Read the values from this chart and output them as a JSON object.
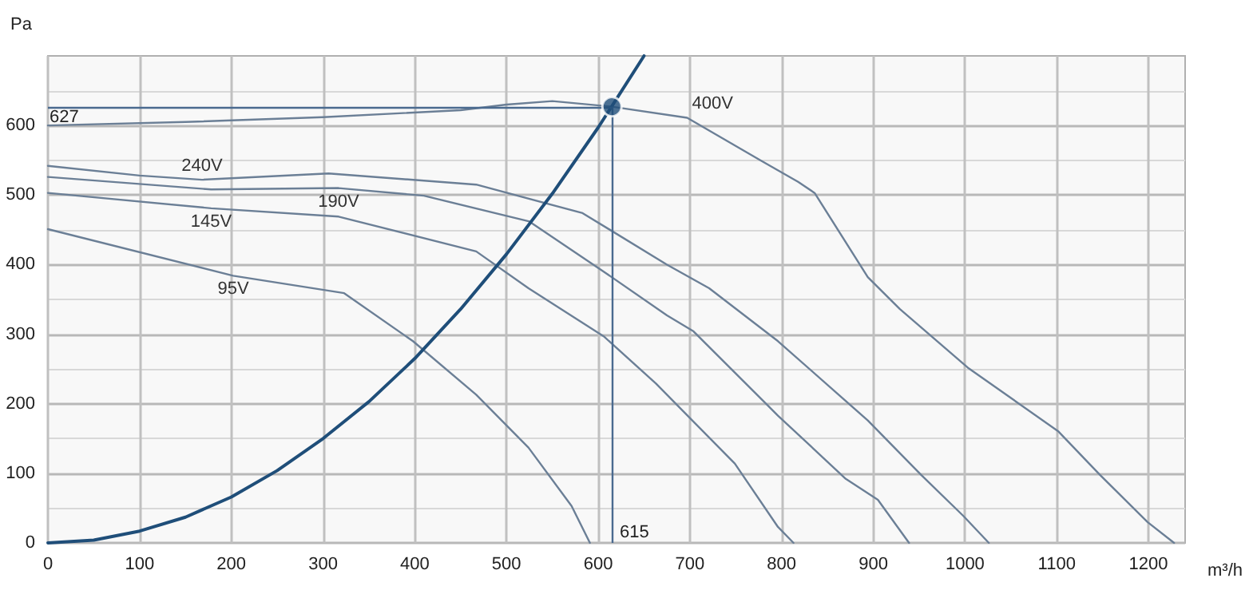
{
  "chart_data": {
    "type": "line",
    "ylabel": "Pa",
    "xlabel": "m³/h",
    "xlim": [
      0,
      1240
    ],
    "xticks": [
      0,
      100,
      200,
      300,
      400,
      500,
      600,
      700,
      800,
      900,
      1000,
      1100,
      1200
    ],
    "ylim": [
      0,
      700
    ],
    "yticks": [
      0,
      100,
      200,
      300,
      400,
      500,
      600
    ],
    "grid": true,
    "legend": false,
    "marker": "none",
    "line_style": "solid",
    "series": [
      {
        "name": "400V",
        "color": "#6b7f96",
        "x": [
          0,
          150,
          300,
          450,
          500,
          550,
          615,
          697,
          778,
          818,
          836,
          894,
          929,
          1003,
          1102,
          1147,
          1199,
          1228
        ],
        "values": [
          600,
          605,
          612,
          622,
          630,
          635,
          627,
          611,
          549,
          519,
          503,
          382,
          336,
          252,
          160,
          98,
          30,
          0
        ]
      },
      {
        "name": "240V",
        "color": "#6b7f96",
        "x": [
          0,
          100,
          168,
          306,
          467,
          583,
          675,
          721,
          796,
          894,
          952,
          998,
          1026
        ],
        "values": [
          542,
          528,
          522,
          531,
          515,
          474,
          400,
          366,
          290,
          176,
          98,
          39,
          0
        ]
      },
      {
        "name": "190V",
        "color": "#6b7f96",
        "x": [
          0,
          178,
          317,
          410,
          525,
          606,
          675,
          704,
          796,
          870,
          905,
          939
        ],
        "values": [
          526,
          508,
          510,
          499,
          462,
          390,
          327,
          304,
          183,
          92,
          62,
          0
        ]
      },
      {
        "name": "145V",
        "color": "#6b7f96",
        "x": [
          0,
          178,
          317,
          467,
          524,
          606,
          663,
          749,
          796,
          813
        ],
        "values": [
          503,
          481,
          469,
          419,
          366,
          297,
          229,
          114,
          23,
          0
        ]
      },
      {
        "name": "95V",
        "color": "#6b7f96",
        "x": [
          0,
          202,
          323,
          398,
          467,
          524,
          571,
          591
        ],
        "values": [
          451,
          384,
          359,
          290,
          213,
          137,
          53,
          0
        ]
      },
      {
        "color": "#1f4e79",
        "x": [
          0,
          50,
          100,
          150,
          200,
          250,
          300,
          350,
          400,
          450,
          500,
          550,
          600,
          650
        ],
        "values": [
          0,
          4,
          17,
          37,
          66,
          104,
          150,
          203,
          265,
          336,
          415,
          502,
          597,
          700
        ]
      },
      {
        "type": "scatter",
        "marker": "circle",
        "color": "#1f4e79",
        "x": [
          615
        ],
        "values": [
          627
        ]
      }
    ],
    "ref_lines": [
      {
        "axis": "y",
        "value": 627,
        "label": "627",
        "color": "#4a6a8f"
      },
      {
        "axis": "x",
        "value": 615,
        "label": "615",
        "color": "#4a6a8f"
      }
    ]
  }
}
